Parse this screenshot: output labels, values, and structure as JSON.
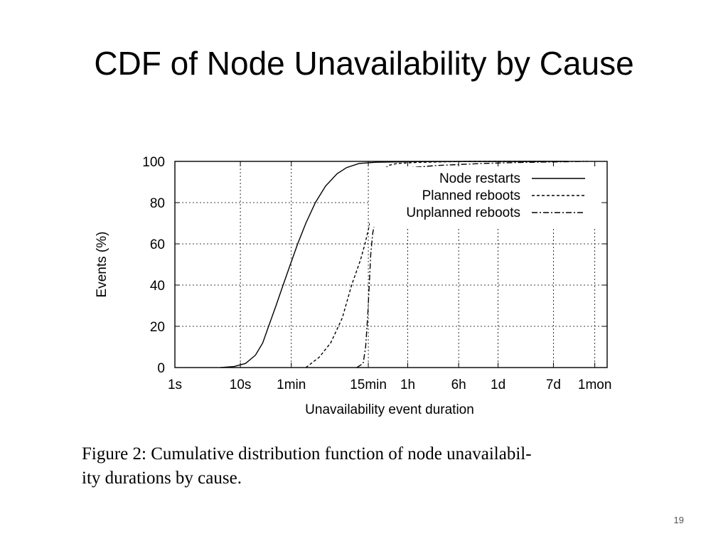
{
  "slide": {
    "title": "CDF of Node Unavailability by Cause",
    "caption_lines": [
      "Figure 2: Cumulative distribution function of node unavailabil-",
      "ity durations by cause."
    ],
    "page_number": "19"
  },
  "chart_data": {
    "type": "line",
    "title": "",
    "xlabel": "Unavailability event duration",
    "ylabel": "Events (%)",
    "x_scale": "log",
    "x_unit": "seconds",
    "xlim": [
      1,
      4000000
    ],
    "ylim": [
      0,
      100
    ],
    "grid": true,
    "legend_position": "top-right",
    "x_ticks": [
      {
        "value": 1,
        "label": "1s"
      },
      {
        "value": 10,
        "label": "10s"
      },
      {
        "value": 60,
        "label": "1min"
      },
      {
        "value": 900,
        "label": "15min"
      },
      {
        "value": 3600,
        "label": "1h"
      },
      {
        "value": 21600,
        "label": "6h"
      },
      {
        "value": 86400,
        "label": "1d"
      },
      {
        "value": 604800,
        "label": "7d"
      },
      {
        "value": 2592000,
        "label": "1mon"
      }
    ],
    "y_ticks": [
      0,
      20,
      40,
      60,
      80,
      100
    ],
    "series": [
      {
        "name": "Node restarts",
        "style": "solid",
        "points": [
          [
            5,
            0
          ],
          [
            8,
            0.5
          ],
          [
            12,
            2
          ],
          [
            17,
            6
          ],
          [
            22,
            12
          ],
          [
            27,
            20
          ],
          [
            35,
            30
          ],
          [
            45,
            40
          ],
          [
            58,
            50
          ],
          [
            75,
            60
          ],
          [
            100,
            70
          ],
          [
            140,
            80
          ],
          [
            200,
            88
          ],
          [
            300,
            94
          ],
          [
            420,
            97
          ],
          [
            650,
            99
          ],
          [
            1200,
            99.6
          ],
          [
            5000,
            99.9
          ],
          [
            100000,
            100
          ],
          [
            1000000,
            100
          ]
        ]
      },
      {
        "name": "Planned reboots",
        "style": "dashed",
        "points": [
          [
            100,
            0
          ],
          [
            160,
            5
          ],
          [
            240,
            12
          ],
          [
            360,
            24
          ],
          [
            500,
            40
          ],
          [
            680,
            52
          ],
          [
            800,
            60
          ],
          [
            950,
            70
          ],
          [
            1100,
            82
          ],
          [
            1300,
            90
          ],
          [
            1500,
            95
          ],
          [
            1800,
            98
          ],
          [
            2500,
            99
          ],
          [
            5000,
            99.5
          ],
          [
            30000,
            100
          ],
          [
            500000,
            100
          ]
        ]
      },
      {
        "name": "Unplanned reboots",
        "style": "dash-dot",
        "points": [
          [
            600,
            0
          ],
          [
            750,
            2
          ],
          [
            820,
            10
          ],
          [
            880,
            25
          ],
          [
            930,
            40
          ],
          [
            980,
            55
          ],
          [
            1050,
            65
          ],
          [
            1200,
            75
          ],
          [
            1400,
            85
          ],
          [
            1700,
            92
          ],
          [
            2200,
            95
          ],
          [
            4000,
            97
          ],
          [
            10000,
            98
          ],
          [
            50000,
            99
          ],
          [
            200000,
            99.5
          ],
          [
            2000000,
            100
          ]
        ]
      }
    ]
  }
}
